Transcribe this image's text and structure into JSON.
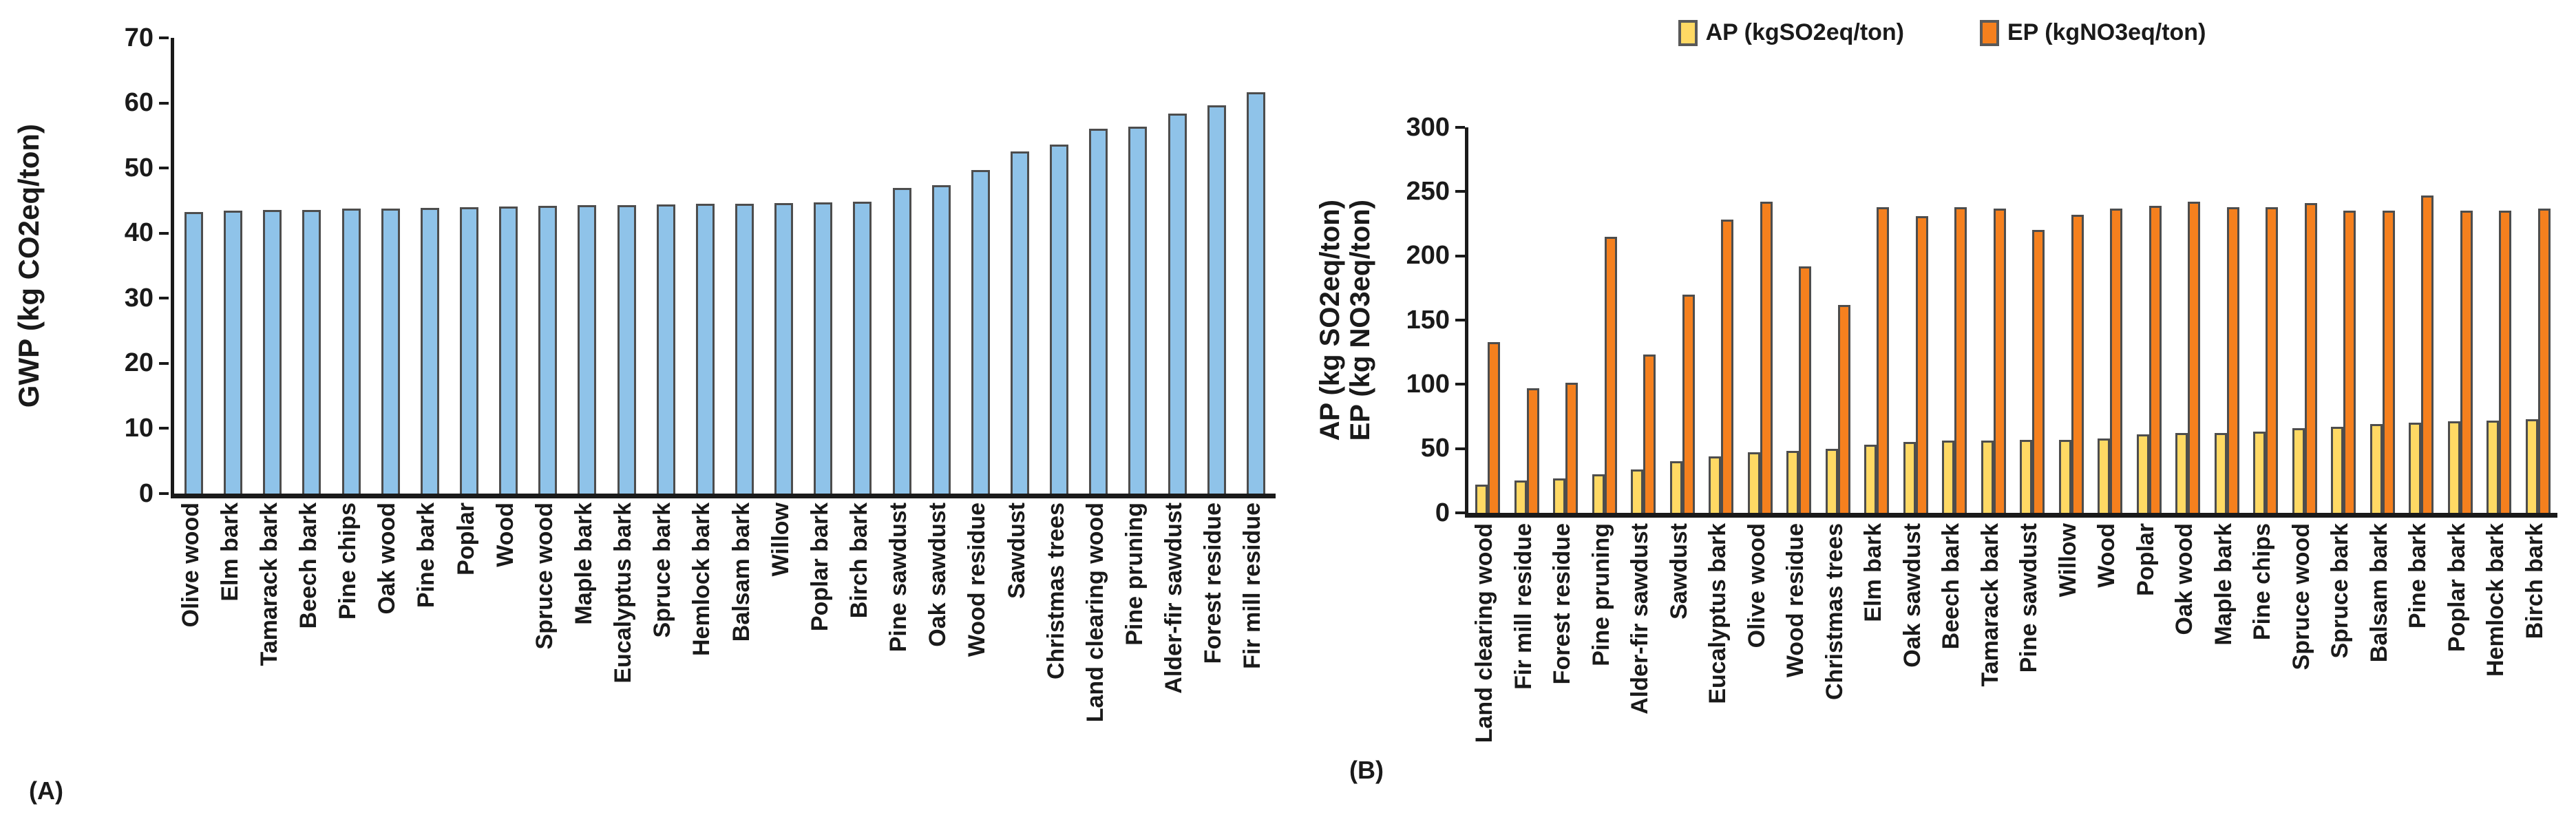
{
  "panels": {
    "a": {
      "tag": "(A)"
    },
    "b": {
      "tag": "(B)"
    }
  },
  "chart_data": [
    {
      "type": "bar",
      "panel": "A",
      "title": "",
      "xlabel": "",
      "ylabel": "GWP (kg CO2eq/ton)",
      "ylim": [
        0,
        70
      ],
      "ytick_step": 10,
      "grid": false,
      "legend_position": "none",
      "bar_color": "#8FC3E9",
      "bar_border_color": "#4d4d4d",
      "categories": [
        "Olive wood",
        "Elm bark",
        "Tamarack bark",
        "Beech bark",
        "Pine chips",
        "Oak wood",
        "Pine bark",
        "Poplar",
        "Wood",
        "Spruce wood",
        "Maple bark",
        "Eucalyptus bark",
        "Spruce bark",
        "Hemlock bark",
        "Balsam bark",
        "Willow",
        "Poplar bark",
        "Birch bark",
        "Pine sawdust",
        "Oak sawdust",
        "Wood residue",
        "Sawdust",
        "Christmas trees",
        "Land clearing wood",
        "Pine pruning",
        "Alder-fir sawdust",
        "Forest residue",
        "Fir mill residue"
      ],
      "values": [
        43.2,
        43.5,
        43.6,
        43.6,
        43.8,
        43.8,
        43.9,
        44.0,
        44.1,
        44.2,
        44.3,
        44.3,
        44.4,
        44.5,
        44.5,
        44.6,
        44.7,
        44.8,
        46.9,
        47.4,
        49.7,
        52.6,
        53.6,
        56.0,
        56.4,
        58.4,
        59.6,
        61.7
      ]
    },
    {
      "type": "bar",
      "panel": "B",
      "title": "",
      "xlabel": "",
      "ylabel_line1": "AP (kg SO2eq/ton)",
      "ylabel_line2": "EP (kg NO3eq/ton)",
      "ylim": [
        0,
        300
      ],
      "ytick_step": 50,
      "grid": false,
      "legend_position": "top",
      "bar_border_color": "#4d4d4d",
      "categories": [
        "Land clearing wood",
        "Fir mill residue",
        "Forest residue",
        "Pine pruning",
        "Alder-fir sawdust",
        "Sawdust",
        "Eucalyptus bark",
        "Olive wood",
        "Wood residue",
        "Christmas trees",
        "Elm bark",
        "Oak sawdust",
        "Beech bark",
        "Tamarack bark",
        "Pine sawdust",
        "Willow",
        "Wood",
        "Poplar",
        "Oak wood",
        "Maple bark",
        "Pine chips",
        "Spruce wood",
        "Spruce bark",
        "Balsam bark",
        "Pine bark",
        "Poplar bark",
        "Hemlock bark",
        "Birch bark"
      ],
      "series": [
        {
          "name": "AP (kgSO2eq/ton)",
          "color": "#FFD964",
          "values": [
            22,
            25,
            27,
            30,
            34,
            40,
            44,
            47,
            48,
            50,
            53,
            55,
            56,
            56,
            57,
            57,
            58,
            61,
            62,
            62,
            63,
            66,
            67,
            69,
            70,
            71,
            72,
            73
          ]
        },
        {
          "name": "EP (kgNO3eq/ton)",
          "color": "#F5801E",
          "values": [
            133,
            97,
            101,
            215,
            123,
            170,
            228,
            242,
            192,
            162,
            238,
            231,
            238,
            237,
            220,
            232,
            237,
            239,
            242,
            238,
            238,
            241,
            235,
            235,
            247,
            235,
            235,
            237
          ]
        }
      ]
    }
  ]
}
